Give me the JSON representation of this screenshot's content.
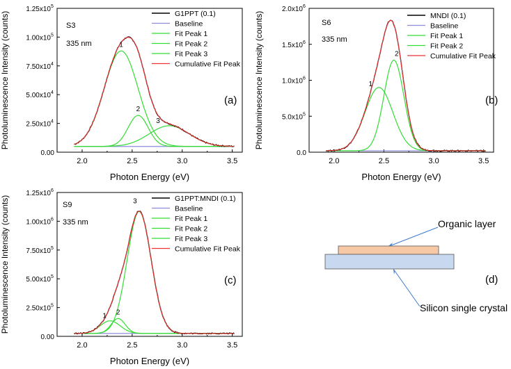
{
  "chart_data": [
    {
      "type": "line",
      "panel": "(a)",
      "sample": "S3",
      "wavelength": "335 nm",
      "xlabel": "Photon Energy (eV)",
      "ylabel": "Photoluminescence Intensity (counts)",
      "xlim": [
        1.75,
        3.6
      ],
      "ylim": [
        0,
        125000
      ],
      "xticks": [
        2.0,
        2.5,
        3.0,
        3.5
      ],
      "xtick_labels": [
        "2.0",
        "2.5",
        "3.0",
        "3.5"
      ],
      "yticks": [
        0,
        25000,
        50000,
        75000,
        100000,
        125000
      ],
      "ytick_labels": [
        {
          "mant": "0.00",
          "exp": ""
        },
        {
          "mant": "2.50x10",
          "exp": "4"
        },
        {
          "mant": "5.00x10",
          "exp": "4"
        },
        {
          "mant": "7.50x10",
          "exp": "4"
        },
        {
          "mant": "1.00x10",
          "exp": "5"
        },
        {
          "mant": "1.25x10",
          "exp": "5"
        }
      ],
      "legend_position": "top-right",
      "baseline": 5000,
      "x_range": [
        1.92,
        3.52
      ],
      "series": [
        {
          "name": "G1PPT (0.1)",
          "role": "data",
          "color": "#000000"
        },
        {
          "name": "Baseline",
          "role": "baseline",
          "color": "#8c8cdc"
        },
        {
          "name": "Fit Peak 1",
          "role": "peak",
          "color": "#33dd33",
          "center": 2.39,
          "height": 83000,
          "sigma": 0.17
        },
        {
          "name": "Fit Peak 2",
          "role": "peak",
          "color": "#33dd33",
          "center": 2.56,
          "height": 27000,
          "sigma": 0.1
        },
        {
          "name": "Fit Peak 3",
          "role": "peak",
          "color": "#33dd33",
          "center": 2.87,
          "height": 18000,
          "sigma": 0.2
        },
        {
          "name": "Cumulative Fit Peak",
          "role": "cumulative",
          "color": "#ee3333"
        }
      ],
      "peak_labels": [
        "1",
        "2",
        "3"
      ]
    },
    {
      "type": "line",
      "panel": "(b)",
      "sample": "S6",
      "wavelength": "335 nm",
      "xlabel": "Photon Energy (eV)",
      "ylabel": "Photoluminescence Intensity (counts)",
      "xlim": [
        1.75,
        3.6
      ],
      "ylim": [
        0,
        2000000
      ],
      "xticks": [
        2.0,
        2.5,
        3.0,
        3.5
      ],
      "xtick_labels": [
        "2.0",
        "2.5",
        "3.0",
        "3.5"
      ],
      "yticks": [
        0,
        500000,
        1000000,
        1500000,
        2000000
      ],
      "ytick_labels": [
        {
          "mant": "0.0",
          "exp": ""
        },
        {
          "mant": "5.0x10",
          "exp": "5"
        },
        {
          "mant": "1.0x10",
          "exp": "6"
        },
        {
          "mant": "1.5x10",
          "exp": "6"
        },
        {
          "mant": "2.0x10",
          "exp": "6"
        }
      ],
      "legend_position": "top-right",
      "baseline": 20000,
      "x_range": [
        1.92,
        3.52
      ],
      "series": [
        {
          "name": "MNDI (0.1)",
          "role": "data",
          "color": "#000000"
        },
        {
          "name": "Baseline",
          "role": "baseline",
          "color": "#8c8cdc"
        },
        {
          "name": "Fit Peak 1",
          "role": "peak",
          "color": "#33dd33",
          "center": 2.45,
          "height": 880000,
          "sigma": 0.14
        },
        {
          "name": "Fit Peak 2",
          "role": "peak",
          "color": "#33dd33",
          "center": 2.6,
          "height": 1260000,
          "sigma": 0.1
        },
        {
          "name": "Cumulative Fit Peak",
          "role": "cumulative",
          "color": "#ee3333"
        }
      ],
      "peak_labels": [
        "1",
        "2"
      ]
    },
    {
      "type": "line",
      "panel": "(c)",
      "sample": "S9",
      "wavelength": "335 nm",
      "xlabel": "Photon Energy (eV)",
      "ylabel": "Photoluminescence Intensity (counts)",
      "xlim": [
        1.75,
        3.6
      ],
      "ylim": [
        0,
        1250000
      ],
      "xticks": [
        2.0,
        2.5,
        3.0,
        3.5
      ],
      "xtick_labels": [
        "2.0",
        "2.5",
        "3.0",
        "3.5"
      ],
      "yticks": [
        0,
        250000,
        500000,
        750000,
        1000000,
        1250000
      ],
      "ytick_labels": [
        {
          "mant": "0.00",
          "exp": ""
        },
        {
          "mant": "2.50x10",
          "exp": "5"
        },
        {
          "mant": "5.00x10",
          "exp": "5"
        },
        {
          "mant": "7.50x10",
          "exp": "5"
        },
        {
          "mant": "1.00x10",
          "exp": "6"
        },
        {
          "mant": "1.25x10",
          "exp": "6"
        }
      ],
      "legend_position": "top-right",
      "baseline": 25000,
      "x_range": [
        1.92,
        3.52
      ],
      "series": [
        {
          "name": "G1PPT:MNDI (0.1)",
          "role": "data",
          "color": "#000000"
        },
        {
          "name": "Baseline",
          "role": "baseline",
          "color": "#8c8cdc"
        },
        {
          "name": "Fit Peak 1",
          "role": "peak",
          "color": "#33dd33",
          "center": 2.28,
          "height": 110000,
          "sigma": 0.1
        },
        {
          "name": "Fit Peak 2",
          "role": "peak",
          "color": "#33dd33",
          "center": 2.36,
          "height": 130000,
          "sigma": 0.07
        },
        {
          "name": "Fit Peak 3",
          "role": "peak",
          "color": "#33dd33",
          "center": 2.57,
          "height": 1060000,
          "sigma": 0.12
        },
        {
          "name": "Cumulative Fit Peak",
          "role": "cumulative",
          "color": "#ee3333"
        }
      ],
      "peak_labels": [
        "1",
        "2",
        "3"
      ]
    }
  ],
  "diagram": {
    "panel": "(d)",
    "organic_label": "Organic layer",
    "substrate_label": "Silicon single crystal",
    "organic_color": "#f7c8a6",
    "substrate_color": "#c8d8ee"
  }
}
